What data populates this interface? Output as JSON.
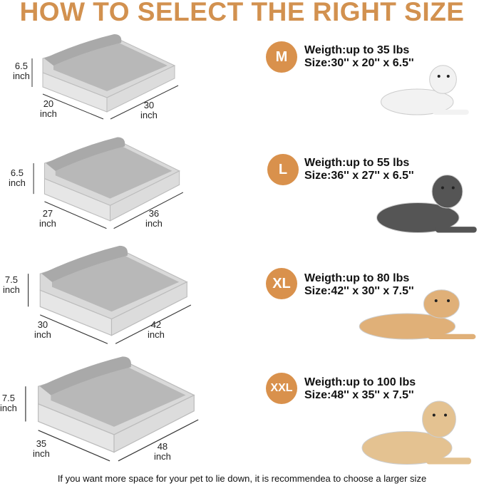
{
  "title": "HOW TO SELECT THE RIGHT SIZE",
  "colors": {
    "accent": "#d9914c",
    "title": "#d2914f",
    "bed": "#c9c9c9"
  },
  "sizes": [
    {
      "badge": "M",
      "weight": "Weigth:up to 35 lbs",
      "size": "Size:30'' x 20'' x 6.5''",
      "height": "6.5",
      "depth": "20",
      "width": "30",
      "unit": "inch",
      "dog": "white small dog"
    },
    {
      "badge": "L",
      "weight": "Weigth:up to 55 lbs",
      "size": "Size:36'' x 27'' x 6.5''",
      "height": "6.5",
      "depth": "27",
      "width": "36",
      "unit": "inch",
      "dog": "husky"
    },
    {
      "badge": "XL",
      "weight": "Weigth:up to 80 lbs",
      "size": "Size:42'' x 30'' x 7.5''",
      "height": "7.5",
      "depth": "30",
      "width": "42",
      "unit": "inch",
      "dog": "golden retriever"
    },
    {
      "badge": "XXL",
      "weight": "Weigth:up to 100 lbs",
      "size": "Size:48'' x 35'' x 7.5''",
      "height": "7.5",
      "depth": "35",
      "width": "48",
      "unit": "inch",
      "dog": "labrador"
    }
  ],
  "footer": "If you want more space for your pet to lie down, it is recommendea to choose a larger size"
}
